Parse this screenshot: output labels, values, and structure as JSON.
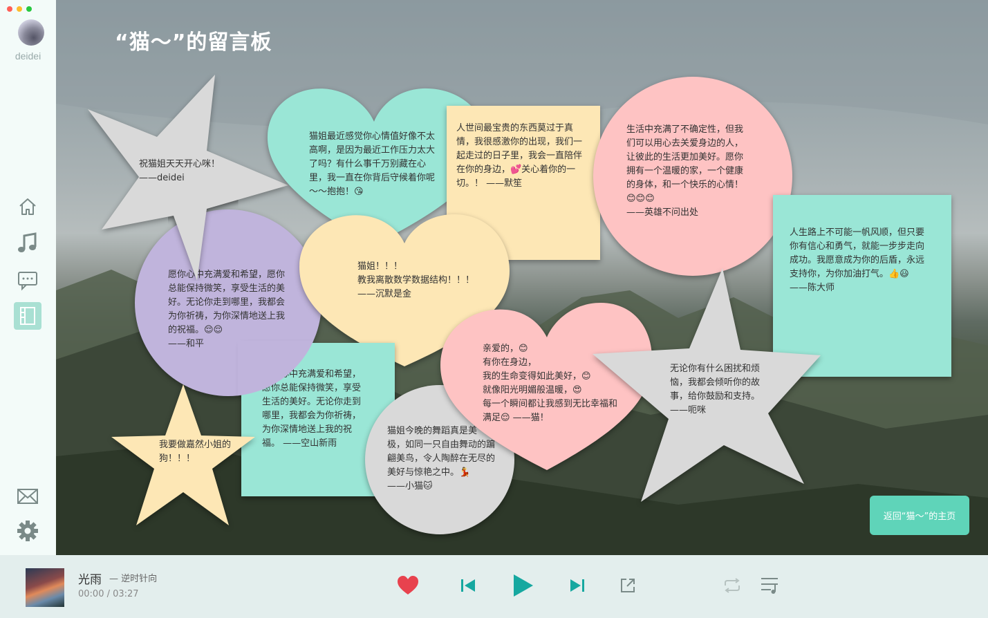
{
  "window": {
    "dots": [
      "#ff5f57",
      "#febc2e",
      "#28c840"
    ]
  },
  "user": {
    "name": "deidei"
  },
  "sidebar": {
    "items": [
      "home-icon",
      "music-icon",
      "chat-icon",
      "board-icon"
    ],
    "bottom": [
      "mail-icon",
      "gear-icon"
    ]
  },
  "page": {
    "title": "“猫～”的留言板"
  },
  "notes": [
    {
      "shape": "star",
      "color": "#d9d9d9",
      "text": "祝猫姐天天开心咪！\n        ——deidei"
    },
    {
      "shape": "heart",
      "color": "#9ae6d6",
      "text": "猫姐最近感觉你心情值好像不太\n高啊，是因为最近工作压力太大\n了吗？有什么事千万别藏在心\n里，我一直在你背后守候着你呢\n～～抱抱！😘"
    },
    {
      "shape": "square",
      "color": "#fde7b5",
      "text": "人世间最宝贵的东西莫过于真\n情，我很感激你的出现，我们一\n起走过的日子里，我会一直陪伴\n在你的身边，💕关心着你的一\n切。！            ——默笙"
    },
    {
      "shape": "circle",
      "color": "#fec3c3",
      "text": "生活中充满了不确定性，但我\n们可以用心去关爱身边的人，\n让彼此的生活更加美好。愿你\n拥有一个温暖的家，一个健康\n的身体，和一个快乐的心情！\n😊😊😊\n        ——英雄不问出处"
    },
    {
      "shape": "square",
      "color": "#9ae6d6",
      "text": "人生路上不可能一帆风顺，但只要\n你有信心和勇气，就能一步步走向\n成功。我愿意成为你的后盾，永远\n支持你，为你加油打气。👍😃\n                    ——陈大师"
    },
    {
      "shape": "circle",
      "color": "#c0b4dc",
      "text": "愿你心中充满爱和希望，愿你\n总能保持微笑，享受生活的美\n好。无论你走到哪里，我都会\n为你祈祷，为你深情地送上我\n的祝福。😌😌\n              ——和平"
    },
    {
      "shape": "heart",
      "color": "#fde7b5",
      "text": "猫姐！！！\n教我离散数学数据结构！！！\n              ——沉默是金"
    },
    {
      "shape": "square",
      "color": "#9ae6d6",
      "text": "愿你心中充满爱和希望，\n愿你总能保持微笑，享受\n生活的美好。无论你走到\n哪里，我都会为你祈祷，\n为你深情地送上我的祝\n福。        ——空山新雨"
    },
    {
      "shape": "star",
      "color": "#fde7b5",
      "text": "我要做嘉然小姐的\n狗！！！"
    },
    {
      "shape": "circle",
      "color": "#d9d9d9",
      "text": "猫姐今晚的舞蹈真是美\n极，如同一只自由舞动的蹁\n翩美鸟，令人陶醉在无尽的\n美好与惊艳之中。💃\n            ——小猫🐱"
    },
    {
      "shape": "heart",
      "color": "#fec3c3",
      "text": "亲爱的，😊\n有你在身边，\n我的生命变得如此美好，😊\n就像阳光明媚般温暖，😍\n每一个瞬间都让我感到无比幸福和\n满足😌        ——猫！"
    },
    {
      "shape": "star",
      "color": "#d9d9d9",
      "text": "无论你有什么困扰和烦\n恼，我都会倾听你的故\n事，给你鼓励和支持。\n        ——呃咪"
    }
  ],
  "actions": {
    "return_label": "返回“猫～”的主页"
  },
  "player": {
    "title": "光雨",
    "artist": "— 逆时针向",
    "time": "00:00 / 03:27",
    "controls": [
      "heart-icon",
      "prev-icon",
      "play-icon",
      "next-icon",
      "share-icon",
      "loop-icon",
      "playlist-icon"
    ],
    "accent": "#16a8a0",
    "heart_color": "#e8424e"
  }
}
